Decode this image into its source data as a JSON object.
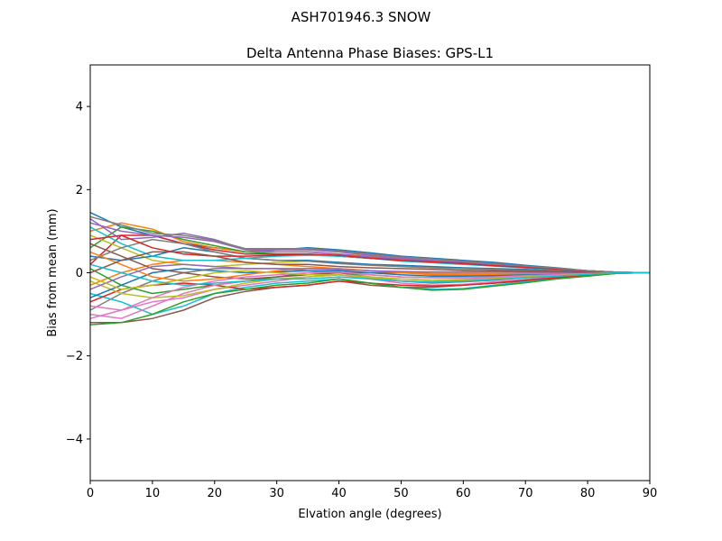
{
  "suptitle": "ASH701946.3      SNOW",
  "chart_data": {
    "type": "line",
    "title": "Delta Antenna Phase Biases: GPS-L1",
    "xlabel": "Elvation angle (degrees)",
    "ylabel": "Bias from mean (mm)",
    "xlim": [
      0,
      90
    ],
    "ylim": [
      -5,
      5
    ],
    "xticks": [
      0,
      10,
      20,
      30,
      40,
      50,
      60,
      70,
      80,
      90
    ],
    "yticks": [
      -4,
      -2,
      0,
      2,
      4
    ],
    "ytick_labels": [
      "−4",
      "−2",
      "0",
      "2",
      "4"
    ],
    "grid": false,
    "colors": [
      "#1f77b4",
      "#ff7f0e",
      "#2ca02c",
      "#d62728",
      "#9467bd",
      "#8c564b",
      "#e377c2",
      "#7f7f7f",
      "#bcbd22",
      "#17becf"
    ],
    "x": [
      0,
      5,
      10,
      15,
      20,
      25,
      30,
      35,
      40,
      45,
      50,
      55,
      60,
      65,
      70,
      75,
      80,
      85,
      90
    ],
    "series": [
      {
        "values": [
          1.45,
          1.1,
          0.9,
          0.7,
          0.6,
          0.5,
          0.55,
          0.6,
          0.55,
          0.48,
          0.4,
          0.35,
          0.3,
          0.25,
          0.18,
          0.12,
          0.05,
          0.01,
          0
        ]
      },
      {
        "values": [
          1.0,
          1.2,
          1.05,
          0.75,
          0.6,
          0.5,
          0.5,
          0.5,
          0.45,
          0.4,
          0.35,
          0.3,
          0.25,
          0.2,
          0.15,
          0.1,
          0.05,
          0.01,
          0
        ]
      },
      {
        "values": [
          0.6,
          1.1,
          1.0,
          0.8,
          0.65,
          0.5,
          0.45,
          0.45,
          0.4,
          0.35,
          0.3,
          0.25,
          0.22,
          0.18,
          0.12,
          0.08,
          0.04,
          0.01,
          0
        ]
      },
      {
        "values": [
          0.2,
          0.9,
          0.9,
          0.7,
          0.55,
          0.45,
          0.45,
          0.45,
          0.4,
          0.35,
          0.3,
          0.28,
          0.24,
          0.2,
          0.15,
          0.1,
          0.05,
          0.01,
          0
        ]
      },
      {
        "values": [
          1.3,
          0.8,
          0.85,
          0.95,
          0.8,
          0.55,
          0.5,
          0.5,
          0.45,
          0.38,
          0.32,
          0.28,
          0.22,
          0.18,
          0.12,
          0.08,
          0.04,
          0.01,
          0
        ]
      },
      {
        "values": [
          -1.2,
          -1.2,
          -1.1,
          -0.9,
          -0.6,
          -0.45,
          -0.35,
          -0.3,
          -0.2,
          -0.3,
          -0.35,
          -0.35,
          -0.3,
          -0.25,
          -0.2,
          -0.12,
          -0.06,
          -0.01,
          0
        ]
      },
      {
        "values": [
          -1.1,
          -0.9,
          -0.7,
          -0.6,
          -0.4,
          -0.3,
          -0.2,
          -0.1,
          -0.05,
          -0.15,
          -0.25,
          -0.3,
          -0.28,
          -0.22,
          -0.16,
          -0.1,
          -0.05,
          -0.01,
          0
        ]
      },
      {
        "values": [
          -0.9,
          -0.5,
          -0.2,
          0.0,
          0.1,
          0.1,
          0.1,
          0.05,
          0.0,
          -0.1,
          -0.2,
          -0.25,
          -0.22,
          -0.18,
          -0.12,
          -0.08,
          -0.04,
          -0.01,
          0
        ]
      },
      {
        "values": [
          0.9,
          0.6,
          0.3,
          0.2,
          0.15,
          0.2,
          0.25,
          0.28,
          0.25,
          0.2,
          0.15,
          0.12,
          0.1,
          0.08,
          0.06,
          0.04,
          0.02,
          0,
          0
        ]
      },
      {
        "values": [
          -0.5,
          -0.7,
          -1.0,
          -0.8,
          -0.5,
          -0.35,
          -0.25,
          -0.2,
          -0.15,
          -0.25,
          -0.35,
          -0.4,
          -0.38,
          -0.3,
          -0.22,
          -0.14,
          -0.07,
          -0.01,
          0
        ]
      },
      {
        "values": [
          0.4,
          0.3,
          0.4,
          0.6,
          0.5,
          0.35,
          0.3,
          0.3,
          0.25,
          0.2,
          0.18,
          0.15,
          0.12,
          0.1,
          0.08,
          0.05,
          0.02,
          0,
          0
        ]
      },
      {
        "values": [
          -0.3,
          0.0,
          0.2,
          0.3,
          0.3,
          0.25,
          0.2,
          0.15,
          0.1,
          0.05,
          0.0,
          -0.05,
          -0.05,
          -0.05,
          -0.04,
          -0.03,
          -0.02,
          0,
          0
        ]
      },
      {
        "values": [
          0.1,
          -0.3,
          -0.5,
          -0.4,
          -0.3,
          -0.2,
          -0.1,
          0.0,
          0.0,
          -0.05,
          -0.1,
          -0.12,
          -0.12,
          -0.1,
          -0.08,
          -0.05,
          -0.02,
          0,
          0
        ]
      },
      {
        "values": [
          -0.7,
          -0.4,
          -0.3,
          -0.25,
          -0.3,
          -0.4,
          -0.35,
          -0.3,
          -0.2,
          -0.25,
          -0.3,
          -0.32,
          -0.3,
          -0.25,
          -0.18,
          -0.12,
          -0.06,
          -0.01,
          0
        ]
      },
      {
        "values": [
          1.2,
          1.0,
          0.9,
          0.85,
          0.75,
          0.55,
          0.55,
          0.55,
          0.5,
          0.42,
          0.35,
          0.3,
          0.26,
          0.2,
          0.15,
          0.1,
          0.05,
          0.01,
          0
        ]
      },
      {
        "values": [
          0.7,
          0.4,
          0.1,
          0.0,
          -0.1,
          -0.15,
          -0.1,
          -0.05,
          0.0,
          0.0,
          0.0,
          0.02,
          0.02,
          0.02,
          0.02,
          0.01,
          0,
          0,
          0
        ]
      },
      {
        "values": [
          -1.0,
          -1.1,
          -0.8,
          -0.5,
          -0.3,
          -0.2,
          -0.15,
          -0.1,
          -0.05,
          -0.1,
          -0.15,
          -0.18,
          -0.16,
          -0.12,
          -0.1,
          -0.06,
          -0.03,
          0,
          0
        ]
      },
      {
        "values": [
          0.3,
          0.6,
          0.8,
          0.7,
          0.5,
          0.35,
          0.3,
          0.28,
          0.22,
          0.18,
          0.15,
          0.12,
          0.1,
          0.08,
          0.06,
          0.04,
          0.02,
          0,
          0
        ]
      },
      {
        "values": [
          -0.2,
          -0.5,
          -0.6,
          -0.55,
          -0.4,
          -0.25,
          -0.15,
          -0.1,
          -0.05,
          -0.12,
          -0.2,
          -0.22,
          -0.2,
          -0.15,
          -0.12,
          -0.08,
          -0.04,
          0,
          0
        ]
      },
      {
        "values": [
          1.1,
          0.7,
          0.4,
          0.3,
          0.3,
          0.35,
          0.4,
          0.42,
          0.4,
          0.35,
          0.28,
          0.24,
          0.2,
          0.16,
          0.12,
          0.08,
          0.04,
          0.01,
          0
        ]
      },
      {
        "values": [
          -0.6,
          -0.3,
          0.0,
          0.1,
          0.05,
          0.0,
          0.02,
          0.05,
          0.05,
          0.0,
          -0.05,
          -0.08,
          -0.08,
          -0.07,
          -0.05,
          -0.03,
          -0.01,
          0,
          0
        ]
      },
      {
        "values": [
          0.5,
          0.2,
          -0.1,
          -0.2,
          -0.15,
          -0.05,
          0.05,
          0.1,
          0.1,
          0.05,
          0.0,
          -0.02,
          -0.02,
          -0.02,
          -0.02,
          -0.01,
          0,
          0,
          0
        ]
      },
      {
        "values": [
          -1.25,
          -1.2,
          -1.0,
          -0.7,
          -0.5,
          -0.4,
          -0.3,
          -0.25,
          -0.15,
          -0.25,
          -0.35,
          -0.42,
          -0.4,
          -0.32,
          -0.24,
          -0.15,
          -0.08,
          -0.01,
          0
        ]
      },
      {
        "values": [
          0.8,
          0.9,
          0.6,
          0.45,
          0.4,
          0.4,
          0.42,
          0.45,
          0.42,
          0.35,
          0.3,
          0.26,
          0.22,
          0.17,
          0.13,
          0.09,
          0.04,
          0.01,
          0
        ]
      },
      {
        "values": [
          -0.4,
          -0.1,
          0.15,
          0.2,
          0.15,
          0.1,
          0.1,
          0.1,
          0.08,
          0.05,
          0.03,
          0.02,
          0.02,
          0.02,
          0.01,
          0.01,
          0,
          0,
          0
        ]
      },
      {
        "values": [
          0.0,
          0.3,
          0.5,
          0.5,
          0.4,
          0.25,
          0.2,
          0.2,
          0.15,
          0.12,
          0.1,
          0.08,
          0.06,
          0.05,
          0.04,
          0.03,
          0.01,
          0,
          0
        ]
      },
      {
        "values": [
          -0.8,
          -0.9,
          -0.6,
          -0.35,
          -0.2,
          -0.1,
          -0.05,
          0.0,
          0.02,
          -0.05,
          -0.1,
          -0.12,
          -0.12,
          -0.1,
          -0.07,
          -0.05,
          -0.02,
          0,
          0
        ]
      },
      {
        "values": [
          1.35,
          1.15,
          0.95,
          0.9,
          0.78,
          0.58,
          0.58,
          0.58,
          0.52,
          0.45,
          0.38,
          0.33,
          0.28,
          0.22,
          0.16,
          0.11,
          0.05,
          0.01,
          0
        ]
      },
      {
        "values": [
          -0.1,
          -0.4,
          -0.3,
          -0.15,
          0.0,
          0.05,
          0.0,
          -0.05,
          -0.05,
          -0.1,
          -0.15,
          -0.18,
          -0.17,
          -0.14,
          -0.1,
          -0.07,
          -0.03,
          0,
          0
        ]
      },
      {
        "values": [
          0.2,
          0.0,
          -0.2,
          -0.3,
          -0.25,
          -0.2,
          -0.15,
          -0.15,
          -0.1,
          -0.15,
          -0.2,
          -0.22,
          -0.2,
          -0.16,
          -0.12,
          -0.08,
          -0.04,
          0,
          0
        ]
      }
    ]
  }
}
